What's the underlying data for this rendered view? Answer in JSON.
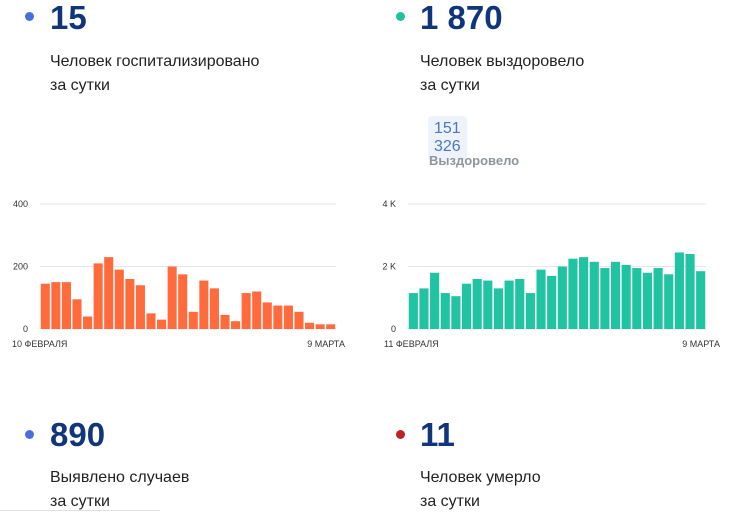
{
  "stats": [
    {
      "value": "15",
      "label1": "Человек госпитализировано",
      "label2": "за сутки",
      "dot_color": "#4a6fdb"
    },
    {
      "value": "1 870",
      "label1": "Человек выздоровело",
      "label2": "за сутки",
      "dot_color": "#1fbf9f",
      "badge": "151 326",
      "badge_label": "Выздоровело"
    },
    {
      "value": "890",
      "label1": "Выявлено случаев",
      "label2": "за сутки",
      "dot_color": "#4a6fdb"
    },
    {
      "value": "11",
      "label1": "Человек умерло",
      "label2": "за сутки",
      "dot_color": "#c0202a"
    }
  ],
  "chart_data": [
    {
      "type": "bar",
      "color": "#ff6b3d",
      "y_ticks": [
        "400",
        "200",
        "0"
      ],
      "ylim": [
        0,
        400
      ],
      "x_start_label": "10 ФЕВРАЛЯ",
      "x_end_label": "9 МАРТА",
      "values": [
        145,
        150,
        150,
        95,
        40,
        210,
        230,
        190,
        160,
        140,
        50,
        30,
        200,
        175,
        55,
        155,
        130,
        45,
        25,
        115,
        120,
        85,
        75,
        75,
        55,
        20,
        15,
        15
      ]
    },
    {
      "type": "bar",
      "color": "#20c4a2",
      "y_ticks": [
        "4 K",
        "2 K",
        "0"
      ],
      "ylim": [
        0,
        4000
      ],
      "x_start_label": "11 ФЕВРАЛЯ",
      "x_end_label": "9 МАРТА",
      "values": [
        1150,
        1300,
        1800,
        1150,
        1050,
        1450,
        1600,
        1550,
        1300,
        1550,
        1600,
        1150,
        1900,
        1700,
        2000,
        2250,
        2300,
        2150,
        1950,
        2150,
        2050,
        1950,
        1800,
        1950,
        1750,
        2450,
        2400,
        1850
      ]
    }
  ]
}
